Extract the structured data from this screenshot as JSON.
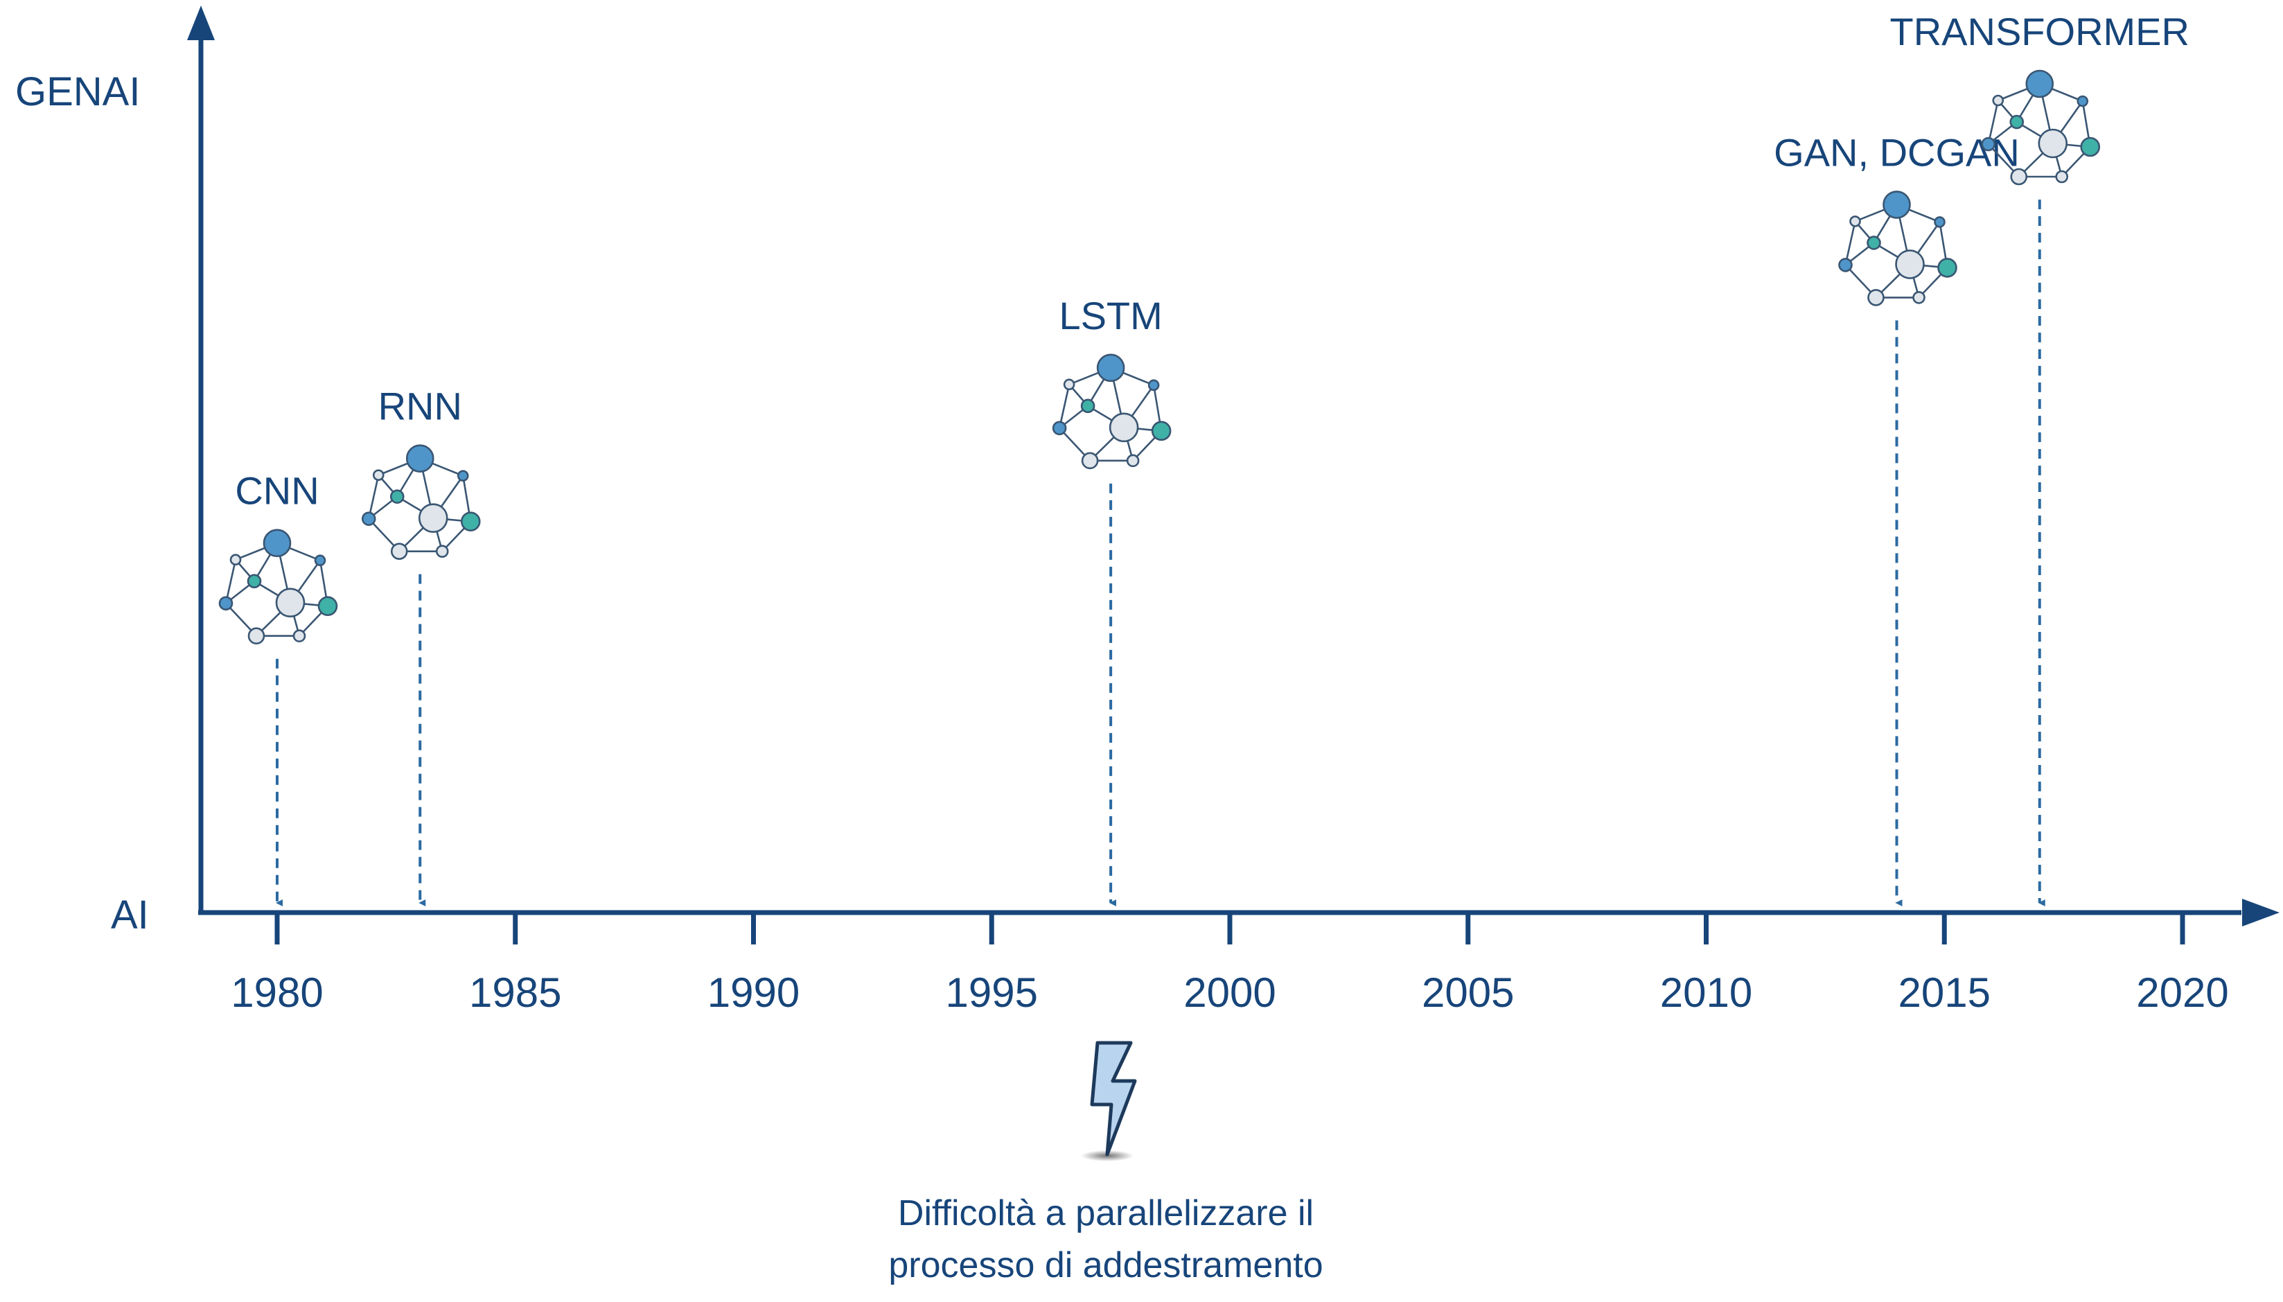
{
  "colors": {
    "axis": "#17457a",
    "dash": "#2b6aa2",
    "node_stroke": "#3a5673",
    "node_blue": "#4f95c9",
    "node_teal": "#3fb1a6",
    "node_light": "#dfe5ea",
    "bolt_fill": "#b9d4ee"
  },
  "axes": {
    "y_top_label": "GENAI",
    "y_bottom_label": "AI"
  },
  "timeline": {
    "ticks": [
      "1980",
      "1985",
      "1990",
      "1995",
      "2000",
      "2005",
      "2010",
      "2015",
      "2020"
    ]
  },
  "events": [
    {
      "label": "CNN",
      "year": 1980,
      "level": 0.24
    },
    {
      "label": "RNN",
      "year": 1983,
      "level": 0.38
    },
    {
      "label": "LSTM",
      "year": 1997.5,
      "level": 0.53
    },
    {
      "label": "GAN, DCGAN",
      "year": 2014,
      "level": 0.8
    },
    {
      "label": "TRANSFORMER",
      "year": 2017,
      "level": 1.0
    }
  ],
  "note": {
    "icon": "lightning-icon",
    "line1": "Difficoltà a parallelizzare il",
    "line2": "processo di addestramento"
  }
}
